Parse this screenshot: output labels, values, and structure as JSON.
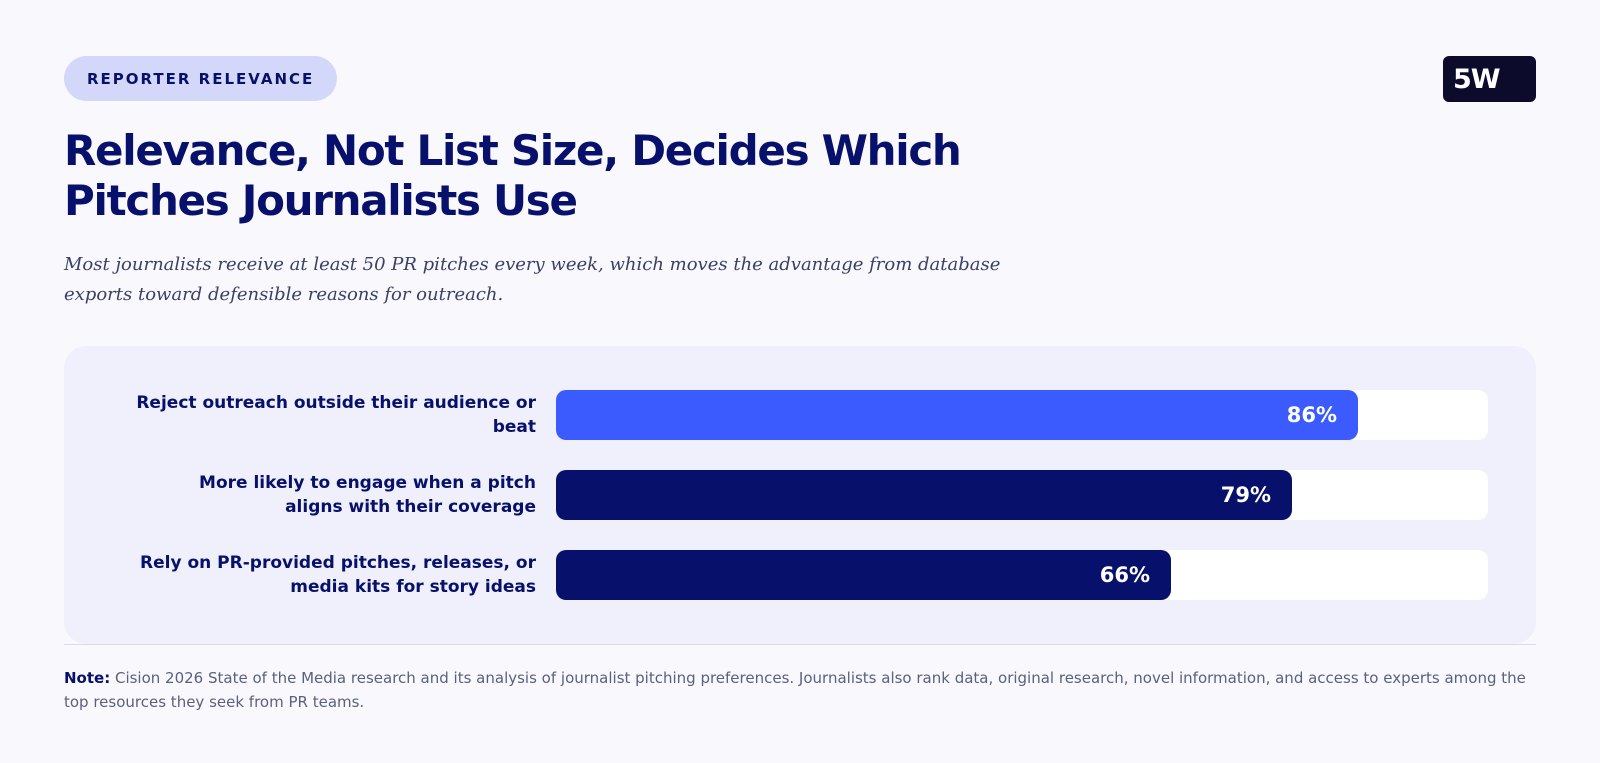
{
  "badge": "REPORTER RELEVANCE",
  "logo": "5W",
  "title": "Relevance, Not List Size, Decides Which Pitches Journalists Use",
  "subtitle": "Most journalists receive at least 50 PR pitches every week, which moves the advantage from database exports toward defensible reasons for outreach.",
  "colors": {
    "highlight": "#3b5bff",
    "primary": "#07106b",
    "track": "#ffffff"
  },
  "chart_data": {
    "type": "bar",
    "orientation": "horizontal",
    "categories": [
      "Reject outreach outside their audience or beat",
      "More likely to engage when a pitch aligns with their coverage",
      "Rely on PR-provided pitches, releases, or media kits for story ideas"
    ],
    "values": [
      86,
      79,
      66
    ],
    "value_labels": [
      "86%",
      "79%",
      "66%"
    ],
    "xlim": [
      0,
      100
    ],
    "grid": false,
    "highlight_index": 0
  },
  "note": {
    "label": "Note:",
    "text": " Cision 2026 State of the Media research and its analysis of journalist pitching preferences. Journalists also rank data, original research, novel information, and access to experts among the top resources they seek from PR teams."
  }
}
